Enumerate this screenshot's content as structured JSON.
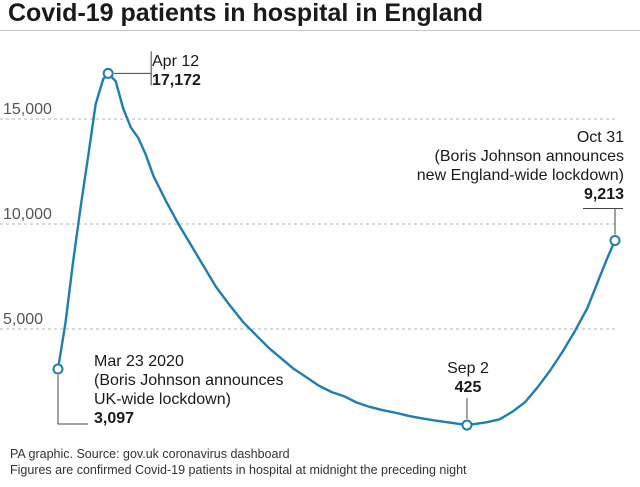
{
  "chart_data": {
    "type": "line",
    "title": "Covid-19 patients in hospital in England",
    "xlabel": "",
    "ylabel": "",
    "xlim": [
      "2020-03-23",
      "2020-10-31"
    ],
    "ylim": [
      0,
      18000
    ],
    "yticks": [
      5000,
      10000,
      15000
    ],
    "ytick_labels": [
      "5,000",
      "10,000",
      "15,000"
    ],
    "grid": true,
    "series": [
      {
        "color": "#1f7eaf",
        "x": [
          "2020-03-23",
          "2020-03-26",
          "2020-03-29",
          "2020-04-01",
          "2020-04-04",
          "2020-04-07",
          "2020-04-10",
          "2020-04-12",
          "2020-04-15",
          "2020-04-18",
          "2020-04-21",
          "2020-04-24",
          "2020-04-27",
          "2020-04-30",
          "2020-05-05",
          "2020-05-10",
          "2020-05-15",
          "2020-05-20",
          "2020-05-25",
          "2020-05-30",
          "2020-06-05",
          "2020-06-10",
          "2020-06-15",
          "2020-06-20",
          "2020-06-25",
          "2020-06-30",
          "2020-07-05",
          "2020-07-10",
          "2020-07-15",
          "2020-07-20",
          "2020-07-25",
          "2020-07-30",
          "2020-08-05",
          "2020-08-10",
          "2020-08-15",
          "2020-08-20",
          "2020-08-25",
          "2020-08-30",
          "2020-09-02",
          "2020-09-05",
          "2020-09-10",
          "2020-09-15",
          "2020-09-20",
          "2020-09-25",
          "2020-09-30",
          "2020-10-05",
          "2020-10-10",
          "2020-10-15",
          "2020-10-20",
          "2020-10-25",
          "2020-10-28",
          "2020-10-31"
        ],
        "values": [
          3097,
          5300,
          8200,
          10800,
          13200,
          15700,
          16900,
          17172,
          16800,
          15500,
          14600,
          14100,
          13300,
          12300,
          11100,
          10000,
          9000,
          8000,
          7000,
          6200,
          5300,
          4700,
          4100,
          3600,
          3100,
          2700,
          2300,
          2000,
          1800,
          1500,
          1300,
          1150,
          1000,
          850,
          750,
          650,
          560,
          480,
          425,
          470,
          560,
          700,
          1050,
          1500,
          2200,
          3000,
          3900,
          4900,
          6000,
          7500,
          8400,
          9213
        ]
      }
    ],
    "annotations": [
      {
        "x": "2020-03-23",
        "y": 3097,
        "lines": [
          "Mar 23 2020",
          "(Boris Johnson announces",
          "UK-wide lockdown)"
        ],
        "value": "3,097"
      },
      {
        "x": "2020-04-12",
        "y": 17172,
        "lines": [
          "Apr 12"
        ],
        "value": "17,172"
      },
      {
        "x": "2020-09-02",
        "y": 425,
        "lines": [
          "Sep 2"
        ],
        "value": "425"
      },
      {
        "x": "2020-10-31",
        "y": 9213,
        "lines": [
          "Oct 31",
          "(Boris Johnson announces",
          "new England-wide lockdown)"
        ],
        "value": "9,213"
      }
    ]
  },
  "footer": {
    "source": "PA graphic. Source: gov.uk coronavirus dashboard",
    "note": "Figures are confirmed Covid-19 patients in hospital at midnight the preceding night"
  }
}
